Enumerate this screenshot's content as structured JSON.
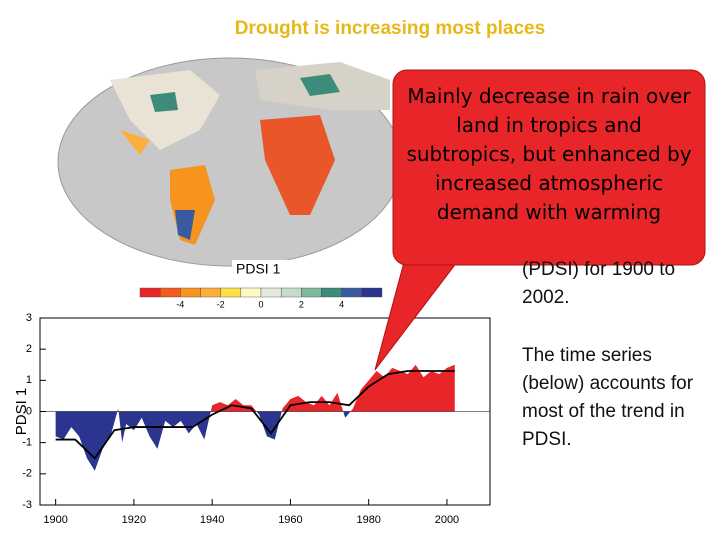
{
  "title": "Drought is increasing most places",
  "callout": "Mainly decrease in rain over land in tropics and subtropics, but enhanced by increased atmospheric demand with warming",
  "body": [
    "(PDSI) for 1900 to 2002.",
    "The time series (below) accounts for most of the trend in PDSI."
  ],
  "map": {
    "label": "PDSI 1",
    "colorbar": {
      "colors": [
        "#e8262a",
        "#f25c1c",
        "#f7941d",
        "#fbb03b",
        "#fde047",
        "#fef9c3",
        "#e5e7e0",
        "#c4dcc8",
        "#7fb89a",
        "#3d8b7a",
        "#3a5aa0",
        "#2b3590"
      ],
      "range": [
        -6,
        6
      ],
      "ticks": [
        -4,
        -2,
        0,
        2,
        4
      ]
    }
  },
  "chart_data": {
    "type": "area",
    "ylabel": "PDSI 1",
    "xlim": [
      1896,
      2011
    ],
    "xticks": [
      1900,
      1920,
      1940,
      1960,
      1980,
      2000
    ],
    "ylim": [
      -3,
      3
    ],
    "yticks": [
      -3,
      -2,
      -1,
      0,
      1,
      2,
      3
    ],
    "colors": {
      "positive": "#e8262a",
      "negative": "#2b3590"
    },
    "x": [
      1900,
      1902,
      1904,
      1906,
      1908,
      1910,
      1912,
      1914,
      1916,
      1917,
      1918,
      1920,
      1922,
      1924,
      1926,
      1928,
      1930,
      1932,
      1934,
      1936,
      1938,
      1940,
      1942,
      1944,
      1946,
      1948,
      1950,
      1952,
      1954,
      1956,
      1958,
      1960,
      1962,
      1964,
      1966,
      1968,
      1970,
      1972,
      1974,
      1976,
      1978,
      1980,
      1982,
      1984,
      1986,
      1988,
      1990,
      1992,
      1994,
      1996,
      1998,
      2000,
      2002
    ],
    "values": [
      -0.8,
      -0.9,
      -0.5,
      -0.8,
      -1.5,
      -1.9,
      -1.2,
      -0.8,
      0.1,
      -1.0,
      -0.4,
      -0.6,
      -0.2,
      -0.8,
      -1.2,
      -0.3,
      -0.5,
      -0.3,
      -0.7,
      -0.4,
      -0.9,
      0.2,
      0.3,
      0.2,
      0.4,
      0.2,
      0.2,
      -0.1,
      -0.8,
      -0.9,
      0.1,
      0.4,
      0.5,
      0.3,
      0.2,
      0.5,
      0.2,
      0.6,
      -0.2,
      0.1,
      0.7,
      1.0,
      1.3,
      1.1,
      1.4,
      1.3,
      1.2,
      1.5,
      1.1,
      1.3,
      1.2,
      1.4,
      1.5
    ],
    "smooth_x": [
      1900,
      1905,
      1910,
      1915,
      1920,
      1925,
      1930,
      1935,
      1940,
      1945,
      1950,
      1955,
      1960,
      1965,
      1970,
      1975,
      1980,
      1985,
      1990,
      1995,
      2000,
      2002
    ],
    "smooth": [
      -0.9,
      -0.9,
      -1.5,
      -0.6,
      -0.5,
      -0.5,
      -0.5,
      -0.5,
      -0.1,
      0.2,
      0.1,
      -0.7,
      0.2,
      0.3,
      0.3,
      0.2,
      0.8,
      1.2,
      1.3,
      1.3,
      1.3,
      1.3
    ]
  }
}
